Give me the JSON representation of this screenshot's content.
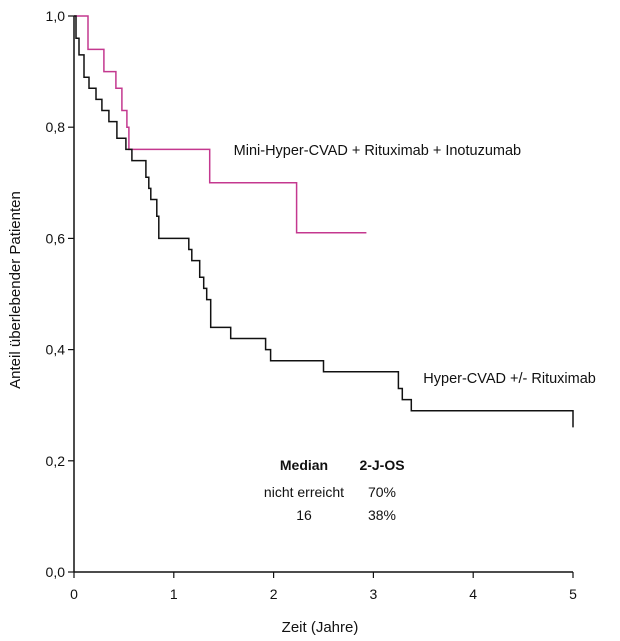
{
  "chart_data": {
    "type": "line",
    "xlabel": "Zeit (Jahre)",
    "ylabel": "Anteil überlebender Patienten",
    "xlim": [
      0,
      5
    ],
    "ylim": [
      0,
      1
    ],
    "x_ticks": [
      "0",
      "1",
      "2",
      "3",
      "4",
      "5"
    ],
    "y_ticks": [
      "0,0",
      "0,2",
      "0,4",
      "0,6",
      "0,8",
      "1,0"
    ],
    "grid": false,
    "series": [
      {
        "name": "Mini-Hyper-CVAD + Rituximab + Inotuzumab",
        "color": "#c4388f",
        "points": [
          [
            0,
            1.0
          ],
          [
            0.14,
            1.0
          ],
          [
            0.14,
            0.94
          ],
          [
            0.3,
            0.94
          ],
          [
            0.3,
            0.9
          ],
          [
            0.42,
            0.9
          ],
          [
            0.42,
            0.87
          ],
          [
            0.48,
            0.87
          ],
          [
            0.48,
            0.83
          ],
          [
            0.53,
            0.83
          ],
          [
            0.53,
            0.8
          ],
          [
            0.55,
            0.8
          ],
          [
            0.55,
            0.76
          ],
          [
            1.36,
            0.76
          ],
          [
            1.36,
            0.7
          ],
          [
            2.23,
            0.7
          ],
          [
            2.23,
            0.61
          ],
          [
            2.93,
            0.61
          ]
        ]
      },
      {
        "name": "Hyper-CVAD +/- Rituximab",
        "color": "#111111",
        "points": [
          [
            0,
            1.0
          ],
          [
            0.02,
            1.0
          ],
          [
            0.02,
            0.96
          ],
          [
            0.05,
            0.96
          ],
          [
            0.05,
            0.93
          ],
          [
            0.1,
            0.93
          ],
          [
            0.1,
            0.89
          ],
          [
            0.15,
            0.89
          ],
          [
            0.15,
            0.87
          ],
          [
            0.22,
            0.87
          ],
          [
            0.22,
            0.85
          ],
          [
            0.28,
            0.85
          ],
          [
            0.28,
            0.83
          ],
          [
            0.35,
            0.83
          ],
          [
            0.35,
            0.81
          ],
          [
            0.43,
            0.81
          ],
          [
            0.43,
            0.78
          ],
          [
            0.52,
            0.78
          ],
          [
            0.52,
            0.76
          ],
          [
            0.58,
            0.76
          ],
          [
            0.58,
            0.74
          ],
          [
            0.72,
            0.74
          ],
          [
            0.72,
            0.71
          ],
          [
            0.75,
            0.71
          ],
          [
            0.75,
            0.69
          ],
          [
            0.77,
            0.69
          ],
          [
            0.77,
            0.67
          ],
          [
            0.83,
            0.67
          ],
          [
            0.83,
            0.64
          ],
          [
            0.85,
            0.64
          ],
          [
            0.85,
            0.6
          ],
          [
            1.15,
            0.6
          ],
          [
            1.15,
            0.58
          ],
          [
            1.18,
            0.58
          ],
          [
            1.18,
            0.56
          ],
          [
            1.26,
            0.56
          ],
          [
            1.26,
            0.53
          ],
          [
            1.3,
            0.53
          ],
          [
            1.3,
            0.51
          ],
          [
            1.33,
            0.51
          ],
          [
            1.33,
            0.49
          ],
          [
            1.37,
            0.49
          ],
          [
            1.37,
            0.44
          ],
          [
            1.57,
            0.44
          ],
          [
            1.57,
            0.42
          ],
          [
            1.92,
            0.42
          ],
          [
            1.92,
            0.4
          ],
          [
            1.97,
            0.4
          ],
          [
            1.97,
            0.38
          ],
          [
            2.5,
            0.38
          ],
          [
            2.5,
            0.36
          ],
          [
            3.25,
            0.36
          ],
          [
            3.25,
            0.33
          ],
          [
            3.29,
            0.33
          ],
          [
            3.29,
            0.31
          ],
          [
            3.38,
            0.31
          ],
          [
            3.38,
            0.29
          ],
          [
            5.0,
            0.29
          ],
          [
            5.0,
            0.26
          ]
        ]
      }
    ],
    "series_labels": [
      {
        "text": "Mini-Hyper-CVAD + Rituximab + Inotuzumab",
        "x": 1.6,
        "y": 0.75
      },
      {
        "text": "Hyper-CVAD +/- Rituximab",
        "x": 3.5,
        "y": 0.34
      }
    ],
    "table": {
      "headers": [
        "Median",
        "2-J-OS"
      ],
      "rows": [
        [
          "nicht erreicht",
          "70%"
        ],
        [
          "16",
          "38%"
        ]
      ]
    }
  }
}
